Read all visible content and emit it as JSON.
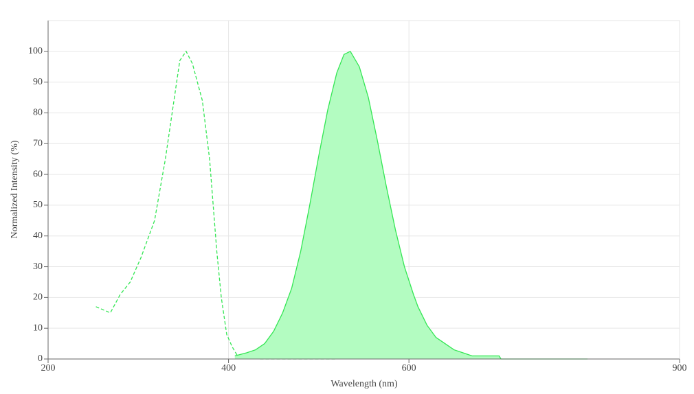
{
  "chart_data": {
    "type": "line",
    "x_label": "Wavelength (nm)",
    "y_label": "Normalized Intensity (%)",
    "xlim": [
      200,
      900
    ],
    "xticks": [
      200,
      400,
      600,
      900
    ],
    "ylim": [
      0,
      110
    ],
    "yticks": [
      0,
      10,
      20,
      30,
      40,
      50,
      60,
      70,
      80,
      90,
      100
    ],
    "grid": true,
    "series": [
      {
        "color": "#33e653",
        "dashed": true,
        "filled": false,
        "x": [
          253,
          261,
          269,
          280,
          291,
          303,
          318,
          330,
          341,
          346,
          353,
          360,
          371,
          379,
          387,
          392,
          398,
          404,
          410,
          421,
          435,
          520
        ],
        "values": [
          17,
          16,
          15,
          21,
          25,
          33,
          45,
          65,
          87,
          97,
          100,
          96,
          84,
          65,
          35,
          20,
          8,
          4,
          1,
          1,
          0,
          0
        ]
      },
      {
        "color": "#33e653",
        "dashed": false,
        "filled": true,
        "fill": "#b3fcc1",
        "x": [
          407,
          420,
          430,
          440,
          450,
          460,
          470,
          480,
          490,
          500,
          510,
          520,
          528,
          535,
          545,
          555,
          565,
          575,
          585,
          595,
          605,
          610,
          620,
          630,
          640,
          650,
          660,
          670,
          700,
          702,
          798
        ],
        "values": [
          1,
          2,
          3,
          5,
          9,
          15,
          23,
          35,
          50,
          66,
          81,
          93,
          99,
          100,
          95,
          85,
          71,
          56,
          42,
          30,
          21,
          17,
          11,
          7,
          5,
          3,
          2,
          1,
          1,
          0,
          0
        ]
      }
    ]
  }
}
